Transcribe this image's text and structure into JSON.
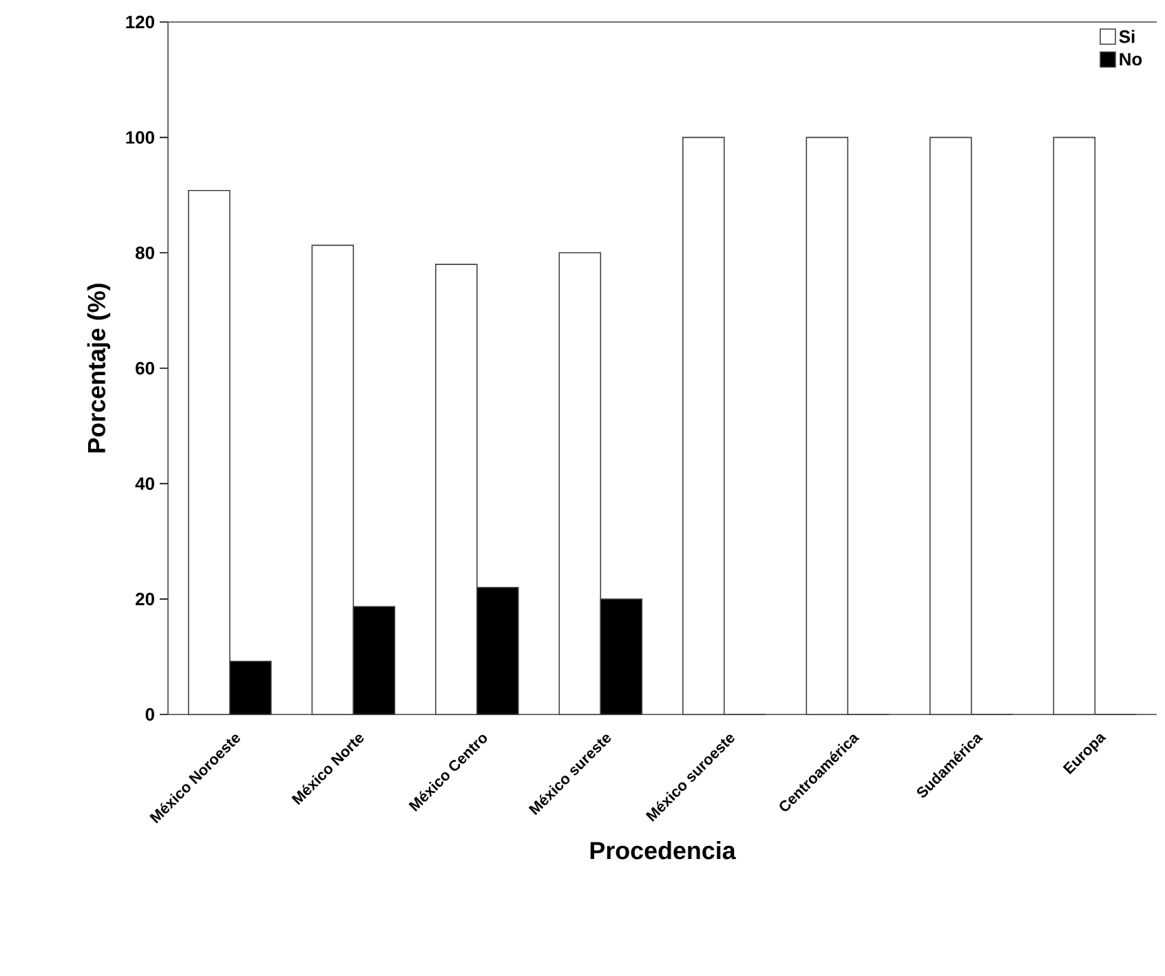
{
  "chart_data": {
    "type": "bar",
    "xlabel": "Procedencia",
    "ylabel": "Porcentaje (%)",
    "categories": [
      "México Noroeste",
      "México Norte",
      "México Centro",
      "México sureste",
      "México suroeste",
      "Centroamérica",
      "Sudamérica",
      "Europa"
    ],
    "series": [
      {
        "name": "Si",
        "color": "#ffffff",
        "values": [
          90.8,
          81.3,
          78,
          80,
          100,
          100,
          100,
          100
        ]
      },
      {
        "name": "No",
        "color": "#000000",
        "values": [
          9.2,
          18.7,
          22,
          20,
          0,
          0,
          0,
          0
        ]
      }
    ],
    "ylim": [
      0,
      120
    ],
    "yticks": [
      0,
      20,
      40,
      60,
      80,
      100,
      120
    ],
    "legend": "top right"
  }
}
